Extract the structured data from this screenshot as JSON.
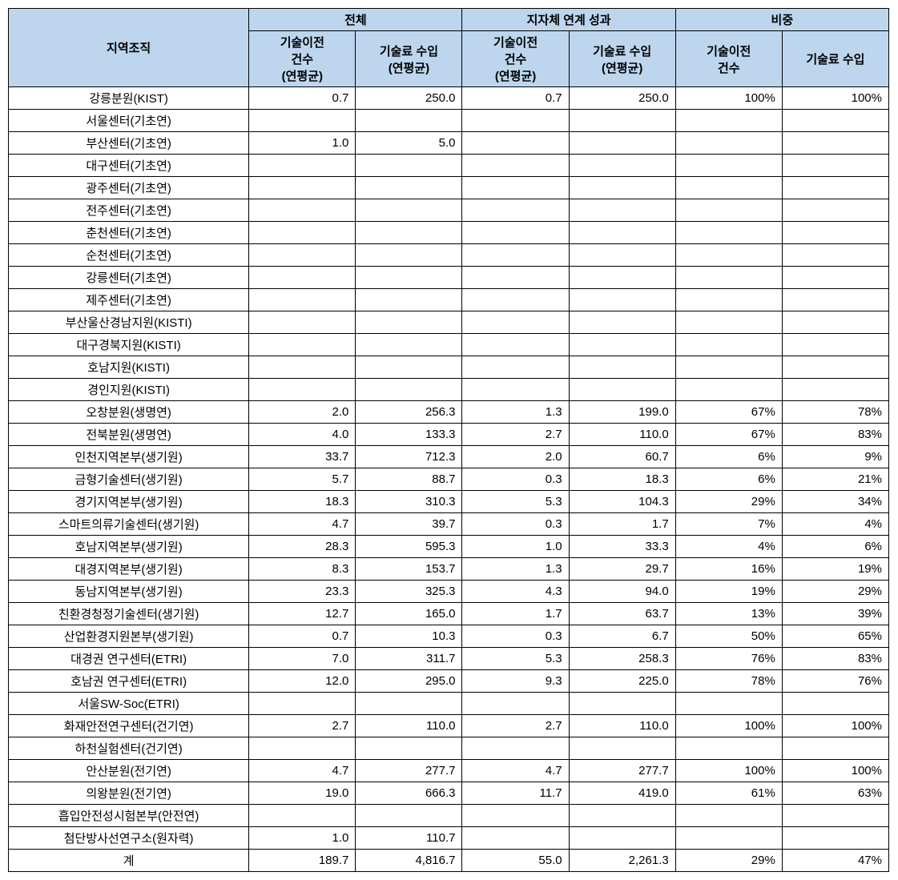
{
  "table": {
    "header": {
      "row_label": "지역조직",
      "group1": "전체",
      "group2": "지자체 연계 성과",
      "group3": "비중",
      "col1": "기술이전\n건수\n(연평균)",
      "col2": "기술료 수입\n(연평균)",
      "col3": "기술이전\n건수\n(연평균)",
      "col4": "기술료 수입\n(연평균)",
      "col5": "기술이전\n건수",
      "col6": "기술료 수입"
    },
    "rows": [
      {
        "label": "강릉분원(KIST)",
        "c1": "0.7",
        "c2": "250.0",
        "c3": "0.7",
        "c4": "250.0",
        "c5": "100%",
        "c6": "100%"
      },
      {
        "label": "서울센터(기초연)",
        "c1": "",
        "c2": "",
        "c3": "",
        "c4": "",
        "c5": "",
        "c6": ""
      },
      {
        "label": "부산센터(기초연)",
        "c1": "1.0",
        "c2": "5.0",
        "c3": "",
        "c4": "",
        "c5": "",
        "c6": ""
      },
      {
        "label": "대구센터(기초연)",
        "c1": "",
        "c2": "",
        "c3": "",
        "c4": "",
        "c5": "",
        "c6": ""
      },
      {
        "label": "광주센터(기초연)",
        "c1": "",
        "c2": "",
        "c3": "",
        "c4": "",
        "c5": "",
        "c6": ""
      },
      {
        "label": "전주센터(기초연)",
        "c1": "",
        "c2": "",
        "c3": "",
        "c4": "",
        "c5": "",
        "c6": ""
      },
      {
        "label": "춘천센터(기초연)",
        "c1": "",
        "c2": "",
        "c3": "",
        "c4": "",
        "c5": "",
        "c6": ""
      },
      {
        "label": "순천센터(기초연)",
        "c1": "",
        "c2": "",
        "c3": "",
        "c4": "",
        "c5": "",
        "c6": ""
      },
      {
        "label": "강릉센터(기초연)",
        "c1": "",
        "c2": "",
        "c3": "",
        "c4": "",
        "c5": "",
        "c6": ""
      },
      {
        "label": "제주센터(기초연)",
        "c1": "",
        "c2": "",
        "c3": "",
        "c4": "",
        "c5": "",
        "c6": ""
      },
      {
        "label": "부산울산경남지원(KISTI)",
        "c1": "",
        "c2": "",
        "c3": "",
        "c4": "",
        "c5": "",
        "c6": ""
      },
      {
        "label": "대구경북지원(KISTI)",
        "c1": "",
        "c2": "",
        "c3": "",
        "c4": "",
        "c5": "",
        "c6": ""
      },
      {
        "label": "호남지원(KISTI)",
        "c1": "",
        "c2": "",
        "c3": "",
        "c4": "",
        "c5": "",
        "c6": ""
      },
      {
        "label": "경인지원(KISTI)",
        "c1": "",
        "c2": "",
        "c3": "",
        "c4": "",
        "c5": "",
        "c6": ""
      },
      {
        "label": "오창분원(생명연)",
        "c1": "2.0",
        "c2": "256.3",
        "c3": "1.3",
        "c4": "199.0",
        "c5": "67%",
        "c6": "78%"
      },
      {
        "label": "전북분원(생명연)",
        "c1": "4.0",
        "c2": "133.3",
        "c3": "2.7",
        "c4": "110.0",
        "c5": "67%",
        "c6": "83%"
      },
      {
        "label": "인천지역본부(생기원)",
        "c1": "33.7",
        "c2": "712.3",
        "c3": "2.0",
        "c4": "60.7",
        "c5": "6%",
        "c6": "9%"
      },
      {
        "label": "금형기술센터(생기원)",
        "c1": "5.7",
        "c2": "88.7",
        "c3": "0.3",
        "c4": "18.3",
        "c5": "6%",
        "c6": "21%"
      },
      {
        "label": "경기지역본부(생기원)",
        "c1": "18.3",
        "c2": "310.3",
        "c3": "5.3",
        "c4": "104.3",
        "c5": "29%",
        "c6": "34%"
      },
      {
        "label": "스마트의류기술센터(생기원)",
        "c1": "4.7",
        "c2": "39.7",
        "c3": "0.3",
        "c4": "1.7",
        "c5": "7%",
        "c6": "4%"
      },
      {
        "label": "호남지역본부(생기원)",
        "c1": "28.3",
        "c2": "595.3",
        "c3": "1.0",
        "c4": "33.3",
        "c5": "4%",
        "c6": "6%"
      },
      {
        "label": "대경지역본부(생기원)",
        "c1": "8.3",
        "c2": "153.7",
        "c3": "1.3",
        "c4": "29.7",
        "c5": "16%",
        "c6": "19%"
      },
      {
        "label": "동남지역본부(생기원)",
        "c1": "23.3",
        "c2": "325.3",
        "c3": "4.3",
        "c4": "94.0",
        "c5": "19%",
        "c6": "29%"
      },
      {
        "label": "친환경청정기술센터(생기원)",
        "c1": "12.7",
        "c2": "165.0",
        "c3": "1.7",
        "c4": "63.7",
        "c5": "13%",
        "c6": "39%"
      },
      {
        "label": "산업환경지원본부(생기원)",
        "c1": "0.7",
        "c2": "10.3",
        "c3": "0.3",
        "c4": "6.7",
        "c5": "50%",
        "c6": "65%"
      },
      {
        "label": "대경권 연구센터(ETRI)",
        "c1": "7.0",
        "c2": "311.7",
        "c3": "5.3",
        "c4": "258.3",
        "c5": "76%",
        "c6": "83%"
      },
      {
        "label": "호남권 연구센터(ETRI)",
        "c1": "12.0",
        "c2": "295.0",
        "c3": "9.3",
        "c4": "225.0",
        "c5": "78%",
        "c6": "76%"
      },
      {
        "label": "서울SW-Soc(ETRI)",
        "c1": "",
        "c2": "",
        "c3": "",
        "c4": "",
        "c5": "",
        "c6": ""
      },
      {
        "label": "화재안전연구센터(건기연)",
        "c1": "2.7",
        "c2": "110.0",
        "c3": "2.7",
        "c4": "110.0",
        "c5": "100%",
        "c6": "100%"
      },
      {
        "label": "하천실험센터(건기연)",
        "c1": "",
        "c2": "",
        "c3": "",
        "c4": "",
        "c5": "",
        "c6": ""
      },
      {
        "label": "안산분원(전기연)",
        "c1": "4.7",
        "c2": "277.7",
        "c3": "4.7",
        "c4": "277.7",
        "c5": "100%",
        "c6": "100%"
      },
      {
        "label": "의왕분원(전기연)",
        "c1": "19.0",
        "c2": "666.3",
        "c3": "11.7",
        "c4": "419.0",
        "c5": "61%",
        "c6": "63%"
      },
      {
        "label": "흡입안전성시험본부(안전연)",
        "c1": "",
        "c2": "",
        "c3": "",
        "c4": "",
        "c5": "",
        "c6": ""
      },
      {
        "label": "첨단방사선연구소(원자력)",
        "c1": "1.0",
        "c2": "110.7",
        "c3": "",
        "c4": "",
        "c5": "",
        "c6": ""
      }
    ],
    "total": {
      "label": "계",
      "c1": "189.7",
      "c2": "4,816.7",
      "c3": "55.0",
      "c4": "2,261.3",
      "c5": "29%",
      "c6": "47%"
    },
    "colors": {
      "header_bg": "#bdd6ee",
      "border": "#000000",
      "background": "#ffffff"
    },
    "typography": {
      "font_family": "Malgun Gothic",
      "font_size": 15
    }
  }
}
